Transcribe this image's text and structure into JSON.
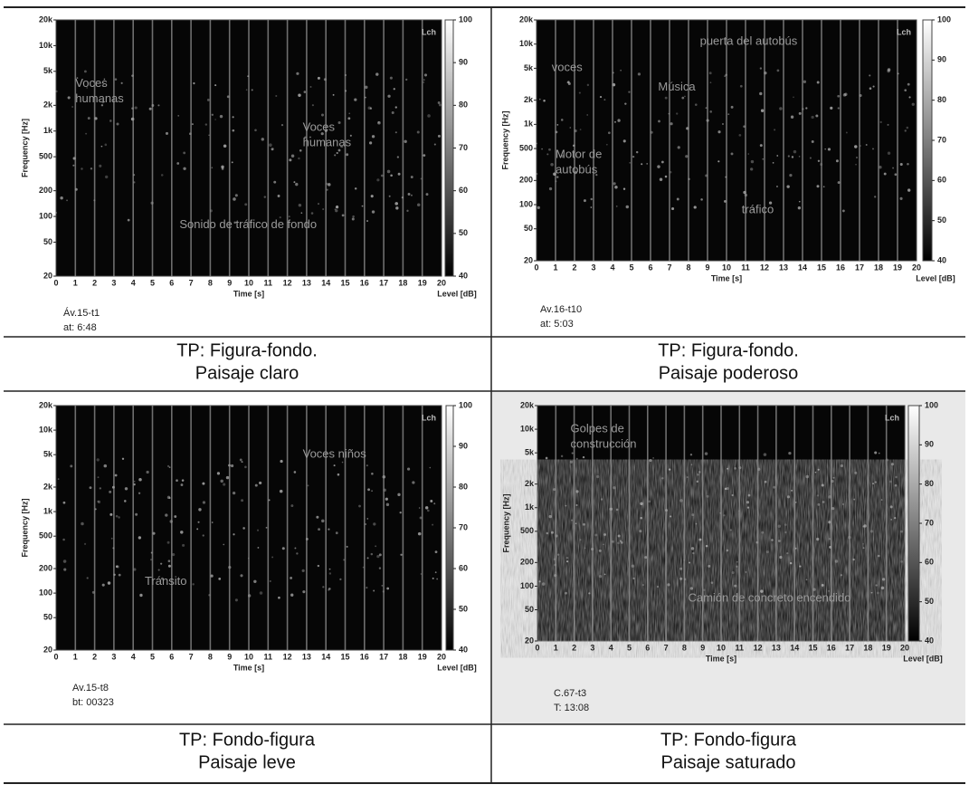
{
  "panels": [
    {
      "annotations": [
        [
          "Voces",
          "humanas"
        ],
        [
          "Voces",
          "humanas"
        ],
        [
          "Sonido de tráfico de fondo"
        ]
      ],
      "channel": "Lch",
      "ylabel": "Frequency [Hz]",
      "xlabel": "Time [s]",
      "cblabel": "Level [dB]",
      "ylim": [
        20,
        20000
      ],
      "yticks": [
        20,
        50,
        100,
        200,
        500,
        {
          "value": 1000,
          "label": "1k"
        },
        {
          "value": 2000,
          "label": "2k"
        },
        {
          "value": 5000,
          "label": "5k"
        },
        {
          "value": 10000,
          "label": "10k"
        },
        {
          "value": 20000,
          "label": "20k"
        }
      ],
      "xlim": [
        0,
        20
      ],
      "xticks": [
        0,
        1,
        2,
        3,
        4,
        5,
        6,
        7,
        8,
        9,
        10,
        11,
        12,
        13,
        14,
        15,
        16,
        17,
        18,
        19,
        20
      ],
      "clim": [
        40,
        100
      ],
      "cticks": [
        100,
        90,
        80,
        70,
        60,
        50,
        40
      ],
      "id": [
        "Áv.15-t1",
        "at: 6:48"
      ],
      "caption": [
        "TP: Figura-fondo.",
        "Paisaje claro"
      ]
    },
    {
      "annotations": [
        [
          "voces"
        ],
        [
          "Música"
        ],
        [
          "puerta del autobús"
        ],
        [
          "Motor de",
          "autobús"
        ],
        [
          "tráfico"
        ]
      ],
      "channel": "Lch",
      "ylabel": "Frequency [Hz]",
      "xlabel": "Time [s]",
      "cblabel": "Level [dB]",
      "ylim": [
        20,
        20000
      ],
      "yticks": [
        20,
        50,
        100,
        200,
        500,
        {
          "value": 1000,
          "label": "1k"
        },
        {
          "value": 2000,
          "label": "2k"
        },
        {
          "value": 5000,
          "label": "5k"
        },
        {
          "value": 10000,
          "label": "10k"
        },
        {
          "value": 20000,
          "label": "20k"
        }
      ],
      "xlim": [
        0,
        20
      ],
      "xticks": [
        0,
        1,
        2,
        3,
        4,
        5,
        6,
        7,
        8,
        9,
        10,
        11,
        12,
        13,
        14,
        15,
        16,
        17,
        18,
        19,
        20
      ],
      "clim": [
        40,
        100
      ],
      "cticks": [
        100,
        90,
        80,
        70,
        60,
        50,
        40
      ],
      "id": [
        "Av.16-t10",
        "at: 5:03"
      ],
      "caption": [
        "TP: Figura-fondo.",
        "Paisaje poderoso"
      ]
    },
    {
      "annotations": [
        [
          "Voces niños"
        ],
        [
          "Tránsito"
        ]
      ],
      "channel": "Lch",
      "ylabel": "Frequency [Hz]",
      "xlabel": "Time [s]",
      "cblabel": "Level [dB]",
      "ylim": [
        20,
        20000
      ],
      "yticks": [
        20,
        50,
        100,
        200,
        500,
        {
          "value": 1000,
          "label": "1k"
        },
        {
          "value": 2000,
          "label": "2k"
        },
        {
          "value": 5000,
          "label": "5k"
        },
        {
          "value": 10000,
          "label": "10k"
        },
        {
          "value": 20000,
          "label": "20k"
        }
      ],
      "xlim": [
        0,
        20
      ],
      "xticks": [
        0,
        1,
        2,
        3,
        4,
        5,
        6,
        7,
        8,
        9,
        10,
        11,
        12,
        13,
        14,
        15,
        16,
        17,
        18,
        19,
        20
      ],
      "clim": [
        40,
        100
      ],
      "cticks": [
        100,
        90,
        80,
        70,
        60,
        50,
        40
      ],
      "id": [
        "Av.15-t8",
        "bt: 00323"
      ],
      "caption": [
        "TP: Fondo-figura",
        "Paisaje leve"
      ]
    },
    {
      "annotations": [
        [
          "Golpes de",
          "construcción"
        ],
        [
          "Camión de concreto encendido"
        ]
      ],
      "channel": "Lch",
      "ylabel": "Frequency [Hz]",
      "xlabel": "Time [s]",
      "cblabel": "Level [dB]",
      "ylim": [
        20,
        20000
      ],
      "yticks": [
        20,
        50,
        100,
        200,
        500,
        {
          "value": 1000,
          "label": "1k"
        },
        {
          "value": 2000,
          "label": "2k"
        },
        {
          "value": 5000,
          "label": "5k"
        },
        {
          "value": 10000,
          "label": "10k"
        },
        {
          "value": 20000,
          "label": "20k"
        }
      ],
      "xlim": [
        0,
        20
      ],
      "xticks": [
        0,
        1,
        2,
        3,
        4,
        5,
        6,
        7,
        8,
        9,
        10,
        11,
        12,
        13,
        14,
        15,
        16,
        17,
        18,
        19,
        20
      ],
      "clim": [
        40,
        100
      ],
      "cticks": [
        100,
        90,
        80,
        70,
        60,
        50,
        40
      ],
      "id": [
        "C.67-t3",
        "T: 13:08"
      ],
      "caption": [
        "TP: Fondo-figura",
        "Paisaje saturado"
      ]
    }
  ]
}
